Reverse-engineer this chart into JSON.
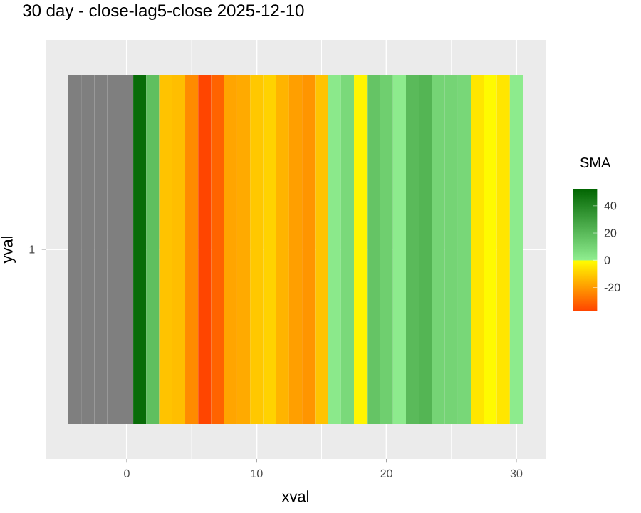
{
  "chart_data": {
    "type": "heatmap",
    "title": "30 day - close-lag5-close  2025-12-10",
    "xlabel": "xval",
    "ylabel": "yval",
    "clabel": "SMA",
    "x": [
      -4,
      -3,
      -2,
      -1,
      0,
      1,
      2,
      3,
      4,
      5,
      6,
      7,
      8,
      9,
      10,
      11,
      12,
      13,
      14,
      15,
      16,
      17,
      18,
      19,
      20,
      21,
      22,
      23,
      24,
      25,
      26,
      27,
      28,
      29,
      30
    ],
    "y_categories": [
      "1"
    ],
    "cells": [
      [
        null,
        null,
        null,
        null,
        null,
        50,
        18,
        -12,
        -13,
        -23,
        -37,
        -31,
        -18,
        -17,
        -11,
        -9,
        -15,
        -19,
        -21,
        -12,
        2,
        8,
        -2,
        16,
        12,
        1,
        20,
        22,
        10,
        10,
        9,
        -5,
        -1,
        -5,
        1
      ]
    ],
    "xlim": [
      -6.25,
      32.25
    ],
    "xticks": [
      0,
      10,
      20,
      30
    ],
    "clim": [
      -37,
      53
    ],
    "cticks": [
      -20,
      0,
      20,
      40
    ],
    "grid": true
  }
}
